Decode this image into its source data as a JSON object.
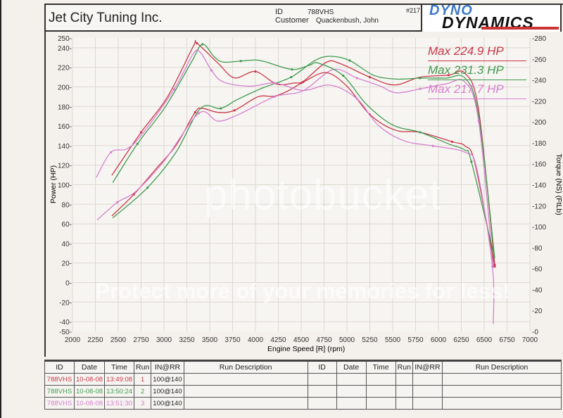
{
  "header": {
    "company": "Jet City Tuning Inc.",
    "id_label": "ID",
    "id_value": "788VHS",
    "customer_label": "Customer",
    "customer_value": "Quackenbush, John",
    "run_number": "#217",
    "logo_text": [
      "DYNO",
      "DYNAMICS"
    ]
  },
  "watermark": [
    "photobucket",
    "Protect more of your memories for less!"
  ],
  "colors": {
    "run1": "#c8374a",
    "run2": "#3f9a4f",
    "run3": "#d67fd0"
  },
  "chart_data": {
    "type": "line",
    "xlabel": "Engine Speed [R] (rpm)",
    "ylabel": "Power (HP)",
    "y2label": "Torque (NS) (FtLb)",
    "xlim": [
      2000,
      7000
    ],
    "ylim": [
      -50,
      250
    ],
    "y2lim": [
      0,
      280
    ],
    "grid": true,
    "x_ticks": [
      "2000",
      "2250",
      "2500",
      "2750",
      "3000",
      "3250",
      "3500",
      "3750",
      "4000",
      "4250",
      "4500",
      "4750",
      "5000",
      "5250",
      "5500",
      "5750",
      "6000",
      "6250",
      "6500",
      "6750",
      "7000"
    ],
    "y_ticks": [
      "250",
      "240",
      "220",
      "200",
      "180",
      "160",
      "140",
      "120",
      "100",
      "80",
      "60",
      "40",
      "20",
      "0",
      "-20",
      "-40",
      "-50"
    ],
    "y2_ticks": [
      "280",
      "260",
      "240",
      "220",
      "200",
      "180",
      "160",
      "140",
      "120",
      "100",
      "80",
      "60",
      "40",
      "20",
      "0"
    ],
    "legend_placement": "top-right",
    "legend": [
      {
        "text": "Max 224.9 HP",
        "color": "#c8374a"
      },
      {
        "text": "Max 231.3 HP",
        "color": "#3f9a4f"
      },
      {
        "text": "Max 217.7 HP",
        "color": "#d67fd0"
      }
    ],
    "series": [
      {
        "run": 1,
        "quantity": "power",
        "axis": "left",
        "color": "#c8374a",
        "x": [
          2430,
          2670,
          2920,
          3130,
          3340,
          3420,
          3590,
          3770,
          4030,
          4230,
          4500,
          4770,
          4920,
          5250,
          5520,
          5800,
          6110,
          6290,
          6440,
          6615
        ],
        "y": [
          68,
          90,
          117,
          140,
          174,
          178,
          174,
          176,
          190,
          191,
          204,
          224.9,
          224,
          210,
          202,
          210,
          212,
          214,
          176,
          18
        ]
      },
      {
        "run": 2,
        "quantity": "power",
        "axis": "left",
        "color": "#3f9a4f",
        "x": [
          2440,
          2820,
          3130,
          3400,
          3620,
          3800,
          4080,
          4390,
          4650,
          4820,
          5030,
          5290,
          5540,
          5800,
          6080,
          6290,
          6440,
          6615
        ],
        "y": [
          66,
          97,
          133,
          178,
          178,
          187,
          199,
          210,
          227,
          231.3,
          227,
          212,
          208,
          209,
          209,
          209,
          170,
          25
        ]
      },
      {
        "run": 3,
        "quantity": "power",
        "axis": "left",
        "color": "#d67fd0",
        "x": [
          2270,
          2490,
          2690,
          3000,
          3380,
          3590,
          3820,
          4210,
          4520,
          4850,
          5110,
          5360,
          5540,
          5800,
          6080,
          6290,
          6440,
          6600
        ],
        "y": [
          64,
          82,
          93,
          124,
          173,
          165,
          172,
          190,
          196,
          217.7,
          209,
          201,
          194,
          198,
          203,
          205,
          165,
          15
        ]
      },
      {
        "run": 1,
        "quantity": "torque",
        "axis": "right",
        "color": "#c8374a",
        "x": [
          2430,
          2750,
          3040,
          3320,
          3360,
          3590,
          3770,
          4000,
          4230,
          4420,
          4520,
          4770,
          5000,
          5250,
          5530,
          5800,
          6150,
          6290,
          6400,
          6615
        ],
        "y": [
          149,
          190,
          224,
          272,
          275,
          256,
          242,
          248,
          236,
          237,
          238,
          247,
          234,
          207,
          192,
          190,
          181,
          177,
          160,
          62
        ]
      },
      {
        "run": 2,
        "quantity": "torque",
        "axis": "right",
        "color": "#3f9a4f",
        "x": [
          2440,
          2710,
          3020,
          3300,
          3420,
          3550,
          3650,
          3840,
          4000,
          4120,
          4400,
          4590,
          4690,
          4960,
          5210,
          5500,
          5800,
          6110,
          6290,
          6360,
          6615
        ],
        "y": [
          142,
          179,
          215,
          257,
          274,
          262,
          257,
          258,
          259,
          257,
          250,
          254,
          256,
          244,
          217,
          197,
          190,
          179,
          173,
          162,
          70
        ]
      },
      {
        "run": 3,
        "quantity": "torque",
        "axis": "right",
        "color": "#d67fd0",
        "x": [
          2260,
          2420,
          2590,
          2750,
          3110,
          3320,
          3400,
          3520,
          3650,
          3940,
          4210,
          4520,
          4820,
          5110,
          5340,
          5620,
          5940,
          6290,
          6420,
          6590,
          6600
        ],
        "y": [
          147,
          171,
          174,
          187,
          231,
          265,
          266,
          249,
          238,
          234,
          237,
          230,
          235,
          222,
          197,
          182,
          177,
          171,
          155,
          62,
          7
        ]
      }
    ]
  },
  "table": {
    "headers": [
      "ID",
      "Date",
      "Time",
      "Run",
      "IN@RR",
      "Run Description",
      "ID",
      "Date",
      "Time",
      "Run",
      "IN@RR",
      "Run Description"
    ],
    "rows": [
      {
        "id": "788VHS",
        "date": "10-08-08",
        "time": "13:49:08",
        "run": "1",
        "inrr": "100@140",
        "desc": ""
      },
      {
        "id": "788VHS",
        "date": "10-08-08",
        "time": "13:50:24",
        "run": "2",
        "inrr": "100@140",
        "desc": ""
      },
      {
        "id": "788VHS",
        "date": "10-08-08",
        "time": "13:51:30",
        "run": "3",
        "inrr": "100@140",
        "desc": ""
      }
    ]
  }
}
